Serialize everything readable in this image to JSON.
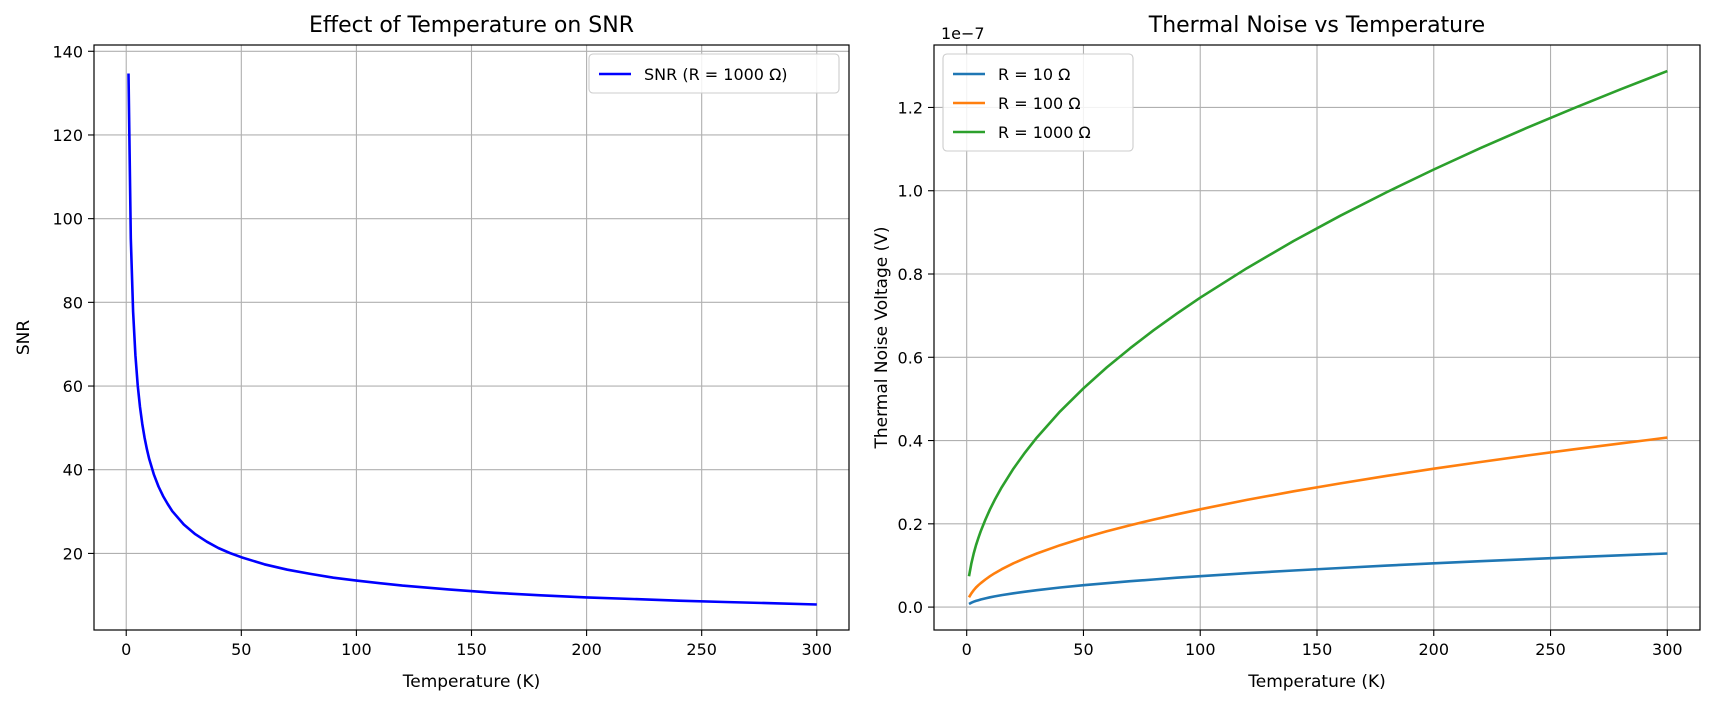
{
  "chart_data": [
    {
      "type": "line",
      "title": "Effect of Temperature on SNR",
      "xlabel": "Temperature (K)",
      "ylabel": "SNR",
      "xlim": [
        -14,
        314
      ],
      "ylim": [
        1.7,
        141.5
      ],
      "xticks": [
        0,
        50,
        100,
        150,
        200,
        250,
        300
      ],
      "yticks": [
        20,
        40,
        60,
        80,
        100,
        120,
        140
      ],
      "grid": true,
      "legend_position": "top-right",
      "series": [
        {
          "name": "SNR (R = 1000 Ω)",
          "color": "#0000ff",
          "x": [
            1,
            2,
            3,
            4,
            5,
            6,
            7,
            8,
            9,
            10,
            12,
            14,
            16,
            18,
            20,
            25,
            30,
            35,
            40,
            45,
            50,
            60,
            70,
            80,
            90,
            100,
            120,
            140,
            160,
            180,
            200,
            220,
            240,
            260,
            280,
            300
          ],
          "y": [
            134.7,
            95.3,
            77.8,
            67.4,
            60.2,
            55.0,
            50.9,
            47.6,
            44.9,
            42.6,
            38.9,
            36.0,
            33.7,
            31.8,
            30.1,
            26.9,
            24.6,
            22.8,
            21.3,
            20.1,
            19.1,
            17.4,
            16.1,
            15.1,
            14.2,
            13.5,
            12.3,
            11.4,
            10.6,
            10.0,
            9.5,
            9.1,
            8.7,
            8.4,
            8.1,
            7.8
          ]
        }
      ]
    },
    {
      "type": "line",
      "title": "Thermal Noise vs Temperature",
      "xlabel": "Temperature (K)",
      "ylabel": "Thermal Noise Voltage (V)",
      "y_offset_label": "1e−7",
      "xlim": [
        -14,
        314
      ],
      "ylim": [
        -0.055,
        1.35
      ],
      "xticks": [
        0,
        50,
        100,
        150,
        200,
        250,
        300
      ],
      "yticks": [
        0.0,
        0.2,
        0.4,
        0.6,
        0.8,
        1.0,
        1.2
      ],
      "ytick_labels": [
        "0.0",
        "0.2",
        "0.4",
        "0.6",
        "0.8",
        "1.0",
        "1.2"
      ],
      "grid": true,
      "legend_position": "top-left",
      "x": [
        1,
        2,
        3,
        4,
        5,
        6,
        8,
        10,
        12,
        15,
        20,
        25,
        30,
        40,
        50,
        60,
        70,
        80,
        90,
        100,
        120,
        140,
        160,
        180,
        200,
        220,
        240,
        260,
        280,
        300
      ],
      "series": [
        {
          "name": "R = 10 Ω",
          "color": "#1f77b4",
          "y": [
            0.0074,
            0.0105,
            0.0129,
            0.0149,
            0.0166,
            0.0182,
            0.021,
            0.0235,
            0.0257,
            0.0288,
            0.0332,
            0.0371,
            0.0407,
            0.047,
            0.0525,
            0.0575,
            0.0621,
            0.0664,
            0.0705,
            0.0743,
            0.0814,
            0.0879,
            0.094,
            0.0997,
            0.1051,
            0.1102,
            0.1151,
            0.1198,
            0.1243,
            0.1287
          ]
        },
        {
          "name": "R = 100 Ω",
          "color": "#ff7f0e",
          "y": [
            0.0235,
            0.0332,
            0.0407,
            0.047,
            0.0525,
            0.0575,
            0.0664,
            0.0743,
            0.0814,
            0.091,
            0.1051,
            0.1175,
            0.1287,
            0.1486,
            0.1662,
            0.182,
            0.1966,
            0.2102,
            0.2229,
            0.235,
            0.2574,
            0.278,
            0.2972,
            0.3153,
            0.3323,
            0.3485,
            0.364,
            0.3789,
            0.3932,
            0.407
          ]
        },
        {
          "name": "R = 1000 Ω",
          "color": "#2ca02c",
          "y": [
            0.0743,
            0.1051,
            0.1287,
            0.1486,
            0.1662,
            0.182,
            0.2102,
            0.235,
            0.2574,
            0.2878,
            0.3323,
            0.3716,
            0.407,
            0.47,
            0.5255,
            0.5756,
            0.6218,
            0.6647,
            0.705,
            0.7431,
            0.814,
            0.8793,
            0.94,
            0.997,
            1.051,
            1.1023,
            1.1513,
            1.1983,
            1.2435,
            1.2872
          ]
        }
      ]
    }
  ]
}
